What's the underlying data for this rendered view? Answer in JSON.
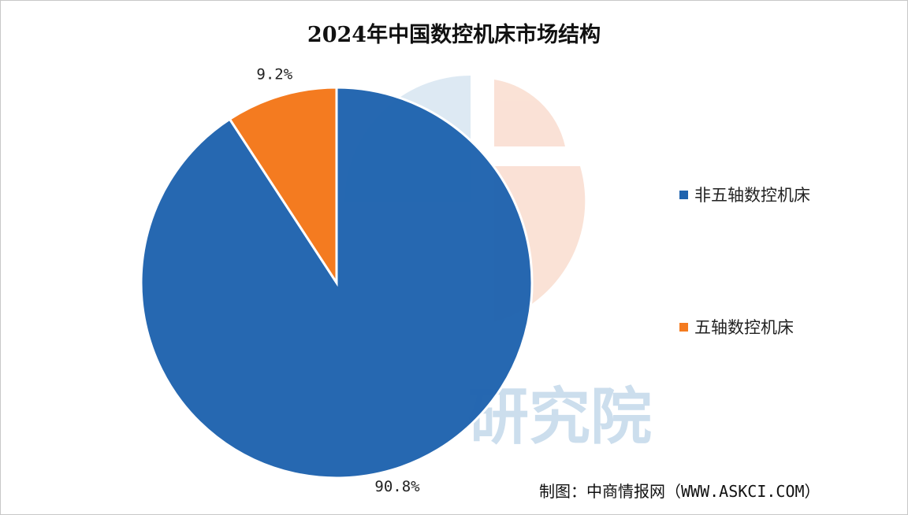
{
  "chart_data": {
    "type": "pie",
    "title": "2024年中国数控机床市场结构",
    "categories": [
      "非五轴数控机床",
      "五轴数控机床"
    ],
    "values": [
      90.8,
      9.2
    ],
    "unit": "%",
    "data_labels": [
      "90.8%",
      "9.2%"
    ],
    "colors": [
      "#1f63ae",
      "#f47b20"
    ],
    "legend_position": "right"
  },
  "watermark": {
    "text": "研究院",
    "colors": [
      "#cfe1ef",
      "#f8d5c5"
    ]
  },
  "source": {
    "text": "制图：中商情报网（WWW.ASKCI.COM）"
  }
}
